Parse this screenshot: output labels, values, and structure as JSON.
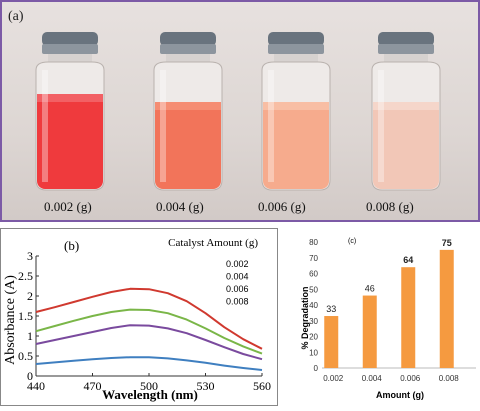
{
  "panel_a": {
    "label": "(a)",
    "vials": [
      {
        "caption": "0.002 (g)",
        "liquid_color": "#ef3a3d",
        "liquid_top": "#f26064"
      },
      {
        "caption": "0.004 (g)",
        "liquid_color": "#f2745a",
        "liquid_top": "#f58d73"
      },
      {
        "caption": "0.006 (g)",
        "liquid_color": "#f6ab8d",
        "liquid_top": "#f8bea4"
      },
      {
        "caption": "0.008 (g)",
        "liquid_color": "#f2c7b7",
        "liquid_top": "#f5d6ca"
      }
    ]
  },
  "chart_data": [
    {
      "type": "line",
      "panel_label": "(b)",
      "title": "",
      "xlabel": "Wavelength (nm)",
      "ylabel": "Absorbance (A)",
      "xlim": [
        440,
        560
      ],
      "ylim": [
        0,
        3
      ],
      "xticks": [
        440,
        470,
        500,
        530,
        560
      ],
      "yticks": [
        0,
        0.5,
        1,
        1.5,
        2,
        2.5,
        3
      ],
      "legend_title": "Catalyst Amount (g)",
      "legend_position": "top-right",
      "grid": false,
      "series": [
        {
          "name": "0.002",
          "color": "#d0392f",
          "x": [
            440,
            450,
            460,
            470,
            480,
            490,
            500,
            510,
            520,
            530,
            540,
            550,
            560
          ],
          "y": [
            1.6,
            1.72,
            1.85,
            1.98,
            2.1,
            2.18,
            2.17,
            2.07,
            1.87,
            1.57,
            1.22,
            0.92,
            0.68
          ]
        },
        {
          "name": "0.004",
          "color": "#7ab648",
          "x": [
            440,
            450,
            460,
            470,
            480,
            490,
            500,
            510,
            520,
            530,
            540,
            550,
            560
          ],
          "y": [
            1.12,
            1.25,
            1.38,
            1.5,
            1.6,
            1.66,
            1.65,
            1.57,
            1.41,
            1.19,
            0.95,
            0.74,
            0.56
          ]
        },
        {
          "name": "0.006",
          "color": "#7a4a9e",
          "x": [
            440,
            450,
            460,
            470,
            480,
            490,
            500,
            510,
            520,
            530,
            540,
            550,
            560
          ],
          "y": [
            0.8,
            0.9,
            1.0,
            1.1,
            1.2,
            1.27,
            1.26,
            1.19,
            1.07,
            0.9,
            0.72,
            0.55,
            0.42
          ]
        },
        {
          "name": "0.008",
          "color": "#3f7fc0",
          "x": [
            440,
            450,
            460,
            470,
            480,
            490,
            500,
            510,
            520,
            530,
            540,
            550,
            560
          ],
          "y": [
            0.3,
            0.34,
            0.38,
            0.42,
            0.45,
            0.47,
            0.47,
            0.44,
            0.39,
            0.33,
            0.26,
            0.2,
            0.15
          ]
        }
      ]
    },
    {
      "type": "bar",
      "panel_label": "(c)",
      "title": "",
      "xlabel": "Amount (g)",
      "ylabel": "% Degradation",
      "categories": [
        "0.002",
        "0.004",
        "0.006",
        "0.008"
      ],
      "values": [
        33,
        46,
        64,
        75
      ],
      "ylim": [
        0,
        80
      ],
      "yticks": [
        0,
        10,
        20,
        30,
        40,
        50,
        60,
        70,
        80
      ],
      "bar_color": "#f59a40",
      "grid": false
    }
  ]
}
